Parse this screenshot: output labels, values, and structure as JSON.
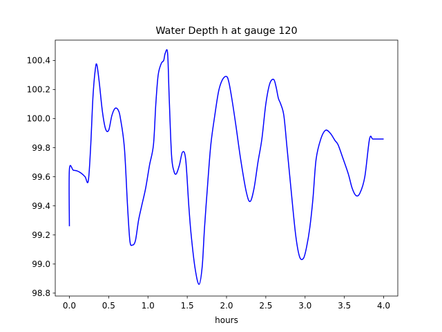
{
  "chart_data": {
    "type": "line",
    "title": "Water Depth h at gauge 120",
    "xlabel": "hours",
    "ylabel": "",
    "xlim": [
      -0.18,
      4.18
    ],
    "ylim": [
      98.78,
      100.54
    ],
    "xticks": [
      0.0,
      0.5,
      1.0,
      1.5,
      2.0,
      2.5,
      3.0,
      3.5,
      4.0
    ],
    "xtick_labels": [
      "0.0",
      "0.5",
      "1.0",
      "1.5",
      "2.0",
      "2.5",
      "3.0",
      "3.5",
      "4.0"
    ],
    "yticks": [
      98.8,
      99.0,
      99.2,
      99.4,
      99.6,
      99.8,
      100.0,
      100.2,
      100.4
    ],
    "ytick_labels": [
      "98.8",
      "99.0",
      "99.2",
      "99.4",
      "99.6",
      "99.8",
      "100.0",
      "100.2",
      "100.4"
    ],
    "grid": false,
    "series": [
      {
        "color": "#0000ff",
        "x": [
          0.0,
          0.0,
          0.05,
          0.1,
          0.15,
          0.2,
          0.24,
          0.27,
          0.3,
          0.33,
          0.35,
          0.38,
          0.42,
          0.46,
          0.5,
          0.54,
          0.58,
          0.62,
          0.65,
          0.7,
          0.74,
          0.77,
          0.8,
          0.84,
          0.88,
          0.92,
          0.97,
          1.02,
          1.07,
          1.1,
          1.13,
          1.17,
          1.2,
          1.22,
          1.25,
          1.27,
          1.3,
          1.33,
          1.36,
          1.4,
          1.44,
          1.48,
          1.52,
          1.55,
          1.6,
          1.65,
          1.69,
          1.72,
          1.76,
          1.8,
          1.85,
          1.9,
          1.95,
          2.0,
          2.03,
          2.07,
          2.12,
          2.18,
          2.25,
          2.3,
          2.35,
          2.4,
          2.45,
          2.5,
          2.55,
          2.6,
          2.63,
          2.66,
          2.69,
          2.73,
          2.77,
          2.82,
          2.88,
          2.93,
          2.98,
          3.02,
          3.06,
          3.1,
          3.14,
          3.2,
          3.26,
          3.32,
          3.38,
          3.42,
          3.48,
          3.55,
          3.6,
          3.65,
          3.7,
          3.76,
          3.82,
          3.86,
          3.9,
          3.95,
          4.0
        ],
        "y": [
          99.26,
          99.65,
          99.645,
          99.64,
          99.625,
          99.6,
          99.57,
          99.8,
          100.15,
          100.34,
          100.37,
          100.25,
          100.05,
          99.93,
          99.92,
          100.02,
          100.07,
          100.06,
          100.0,
          99.8,
          99.4,
          99.16,
          99.13,
          99.16,
          99.3,
          99.4,
          99.52,
          99.68,
          99.82,
          100.1,
          100.3,
          100.38,
          100.4,
          100.45,
          100.45,
          100.15,
          99.75,
          99.64,
          99.62,
          99.68,
          99.77,
          99.72,
          99.4,
          99.2,
          98.97,
          98.86,
          98.98,
          99.25,
          99.55,
          99.82,
          100.02,
          100.19,
          100.27,
          100.29,
          100.25,
          100.13,
          99.95,
          99.72,
          99.5,
          99.43,
          99.52,
          99.7,
          99.86,
          100.1,
          100.24,
          100.27,
          100.22,
          100.14,
          100.1,
          100.02,
          99.8,
          99.52,
          99.2,
          99.05,
          99.04,
          99.12,
          99.25,
          99.45,
          99.72,
          99.86,
          99.92,
          99.9,
          99.85,
          99.82,
          99.73,
          99.62,
          99.52,
          99.47,
          99.49,
          99.6,
          99.86,
          99.86,
          99.86,
          99.86,
          99.86
        ]
      }
    ]
  }
}
